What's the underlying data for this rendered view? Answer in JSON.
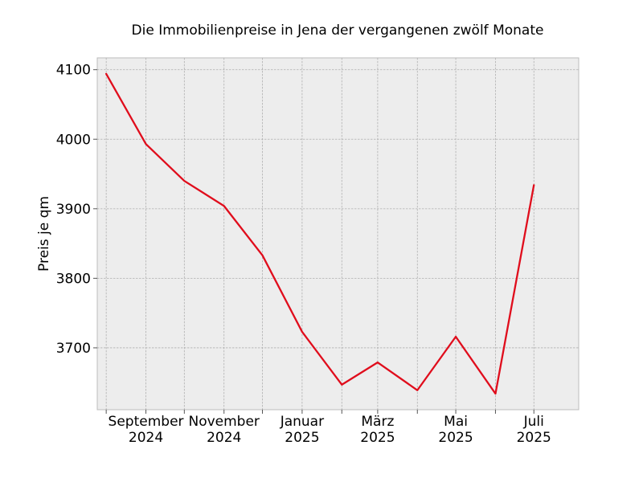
{
  "chart_data": {
    "type": "line",
    "title": "Die Immobilienpreise in Jena der vergangenen zwölf Monate",
    "xlabel": "",
    "ylabel": "Preis je qm",
    "x": [
      "2024-08",
      "2024-09",
      "2024-10",
      "2024-11",
      "2024-12",
      "2025-01",
      "2025-02",
      "2025-03",
      "2025-04",
      "2025-05",
      "2025-06",
      "2025-07"
    ],
    "series": [
      {
        "values": [
          4094,
          3993,
          3940,
          3904,
          3833,
          3723,
          3647,
          3679,
          3639,
          3716,
          3634,
          3934
        ],
        "color": "#e00d1c"
      }
    ],
    "x_tick_labels": [
      {
        "x": "2024-09",
        "line1": "September",
        "line2": "2024"
      },
      {
        "x": "2024-11",
        "line1": "November",
        "line2": "2024"
      },
      {
        "x": "2025-01",
        "line1": "Januar",
        "line2": "2025"
      },
      {
        "x": "2025-03",
        "line1": "März",
        "line2": "2025"
      },
      {
        "x": "2025-05",
        "line1": "Mai",
        "line2": "2025"
      },
      {
        "x": "2025-07",
        "line1": "Juli",
        "line2": "2025"
      }
    ],
    "y_ticks": [
      3700,
      3800,
      3900,
      4000,
      4100
    ],
    "y_tick_labels": [
      "3700",
      "3800",
      "3900",
      "4000",
      "4100"
    ],
    "ylim": [
      3611,
      4117
    ],
    "xlim": [
      "2024-07-25",
      "2025-08-05"
    ],
    "grid": true,
    "legend": false,
    "colors": {
      "plot_background": "#ededed",
      "frame": "#bcbcbc",
      "grid": "#b0b0b0"
    }
  }
}
